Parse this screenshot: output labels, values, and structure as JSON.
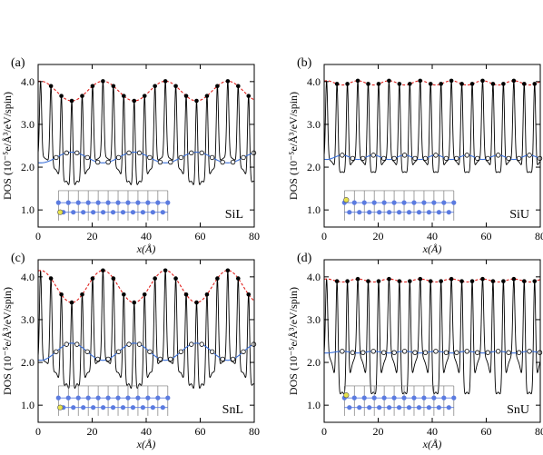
{
  "colors": {
    "dos_line": "#000000",
    "upper_envelope": "#e0201c",
    "lower_envelope": "#3a6fd8",
    "inset_atoms": "#5b7be0",
    "inset_grid": "#7a7a7a",
    "marker_fill_open": "#ffffff",
    "marker_fill_closed": "#000000",
    "adatom": "#e8e24a"
  },
  "shared_axes": {
    "xlabel": "x(Å)",
    "ylabel": "DOS (10⁻⁵e/Å³/eV/spin)",
    "xlim": [
      0,
      80
    ],
    "ylim": [
      0.6,
      4.4
    ],
    "xticks": [
      "0",
      "20",
      "40",
      "60",
      "80"
    ],
    "yticks": [
      "1.0",
      "2.0",
      "3.0",
      "4.0"
    ]
  },
  "chart_data": [
    {
      "type": "line",
      "panel_label": "(a)",
      "system": "SiL",
      "envelope_style": "large",
      "series": [
        {
          "role": "DOS",
          "period_A": 3.85,
          "maxima": [
            4.01,
            3.53
          ],
          "minima": [
            1.55,
            2.25
          ]
        },
        {
          "role": "upper_envelope",
          "style": "dashed",
          "range": [
            3.55,
            4.01
          ],
          "period_A": 23.1
        },
        {
          "role": "lower_envelope",
          "style": "solid",
          "range": [
            2.1,
            2.35
          ],
          "period_A": 23.1
        }
      ]
    },
    {
      "type": "line",
      "panel_label": "(b)",
      "system": "SiU",
      "envelope_style": "small",
      "series": [
        {
          "role": "DOS",
          "period_A": 3.85,
          "maxima": [
            4.02,
            3.92
          ],
          "minima": [
            1.85,
            2.2
          ]
        },
        {
          "role": "upper_envelope",
          "style": "dashed",
          "range": [
            3.92,
            4.02
          ],
          "period_A": 11.55
        },
        {
          "role": "lower_envelope",
          "style": "solid",
          "range": [
            2.18,
            2.28
          ],
          "period_A": 11.55
        }
      ]
    },
    {
      "type": "line",
      "panel_label": "(c)",
      "system": "SnL",
      "envelope_style": "large",
      "series": [
        {
          "role": "DOS",
          "period_A": 3.85,
          "maxima": [
            4.15,
            3.4
          ],
          "minima": [
            1.35,
            2.05
          ]
        },
        {
          "role": "upper_envelope",
          "style": "dashed",
          "range": [
            3.4,
            4.15
          ],
          "period_A": 23.1
        },
        {
          "role": "lower_envelope",
          "style": "solid",
          "range": [
            2.05,
            2.45
          ],
          "period_A": 23.1
        }
      ]
    },
    {
      "type": "line",
      "panel_label": "(d)",
      "system": "SnU",
      "envelope_style": "small",
      "series": [
        {
          "role": "DOS",
          "period_A": 3.85,
          "maxima": [
            3.95,
            3.88
          ],
          "minima": [
            1.2,
            2.2
          ]
        },
        {
          "role": "upper_envelope",
          "style": "dashed",
          "range": [
            3.88,
            3.95
          ],
          "period_A": 11.55
        },
        {
          "role": "lower_envelope",
          "style": "solid",
          "range": [
            2.22,
            2.26
          ],
          "period_A": 11.55
        }
      ]
    }
  ]
}
